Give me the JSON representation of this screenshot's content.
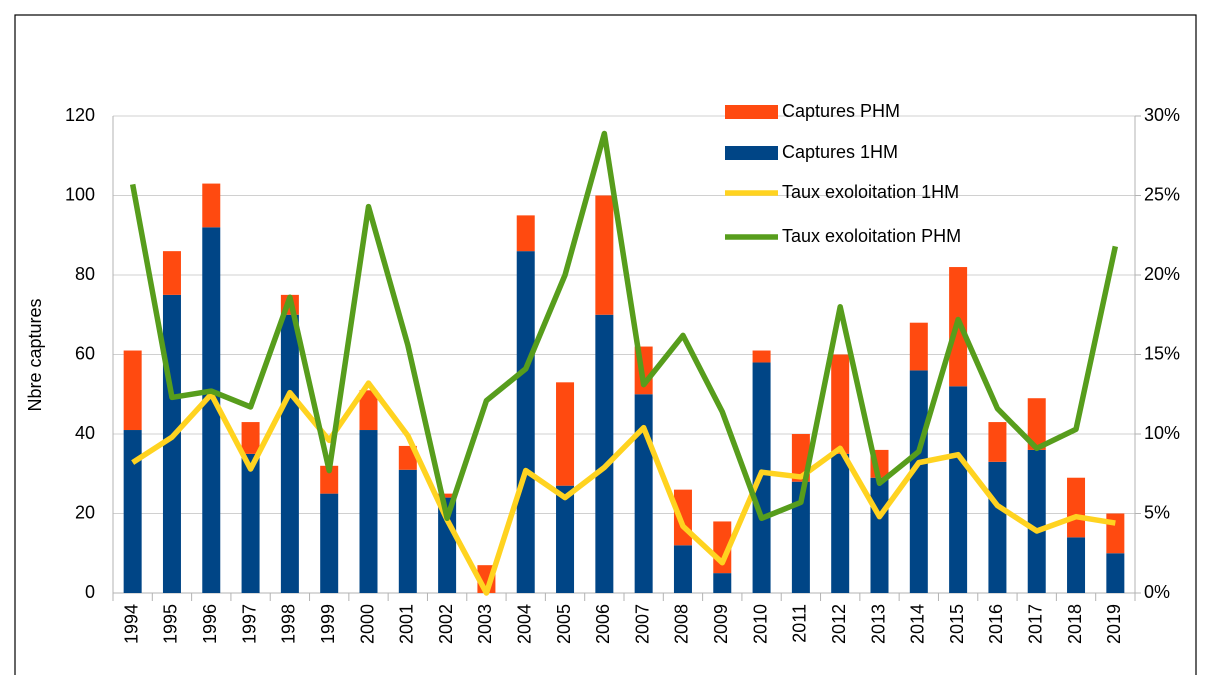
{
  "chart_data": {
    "type": "bar",
    "y_label": "Nbre captures",
    "categories": [
      "1994",
      "1995",
      "1996",
      "1997",
      "1998",
      "1999",
      "2000",
      "2001",
      "2002",
      "2003",
      "2004",
      "2005",
      "2006",
      "2007",
      "2008",
      "2009",
      "2010",
      "2011",
      "2012",
      "2013",
      "2014",
      "2015",
      "2016",
      "2017",
      "2018",
      "2019"
    ],
    "series": [
      {
        "name": "Captures PHM",
        "type": "bar",
        "color": "#ff4a10",
        "values": [
          20,
          11,
          11,
          8,
          5,
          7,
          10,
          6,
          1,
          7,
          9,
          26,
          30,
          12,
          14,
          13,
          3,
          12,
          25,
          7,
          12,
          30,
          10,
          13,
          15,
          10
        ]
      },
      {
        "name": "Captures 1HM",
        "type": "bar",
        "color": "#004586",
        "values": [
          41,
          75,
          92,
          35,
          70,
          25,
          41,
          31,
          24,
          0,
          86,
          27,
          70,
          50,
          12,
          5,
          58,
          28,
          35,
          29,
          56,
          52,
          33,
          36,
          14,
          10
        ]
      },
      {
        "name": "Taux exoloitation 1HM",
        "type": "line",
        "axis": "y2",
        "color": "#ffd320",
        "values": [
          8.2,
          9.8,
          12.5,
          7.8,
          12.6,
          9.6,
          13.2,
          9.9,
          4.6,
          0,
          7.7,
          6.0,
          7.9,
          10.4,
          4.2,
          1.9,
          7.6,
          7.3,
          9.1,
          4.8,
          8.2,
          8.7,
          5.5,
          3.9,
          4.8,
          4.4
        ]
      },
      {
        "name": "Taux exoloitation PHM",
        "type": "line",
        "axis": "y2",
        "color": "#579d1c",
        "values": [
          25.7,
          12.3,
          12.7,
          11.7,
          18.6,
          7.7,
          24.3,
          15.6,
          4.7,
          12.1,
          14.1,
          20.0,
          28.9,
          13.1,
          16.2,
          11.4,
          4.7,
          5.7,
          18.0,
          6.9,
          8.9,
          17.2,
          11.6,
          9.1,
          10.3,
          21.8
        ]
      }
    ],
    "ylim": [
      0,
      120
    ],
    "yticks": [
      0,
      20,
      40,
      60,
      80,
      100,
      120
    ],
    "y2lim": [
      0,
      30
    ],
    "y2ticks": [
      {
        "value": 0,
        "label": "0%"
      },
      {
        "value": 5,
        "label": "5%"
      },
      {
        "value": 10,
        "label": "10%"
      },
      {
        "value": 15,
        "label": "15%"
      },
      {
        "value": 20,
        "label": "20%"
      },
      {
        "value": 25,
        "label": "25%"
      },
      {
        "value": 30,
        "label": "30%"
      }
    ],
    "grid": true,
    "legend": "top-right"
  }
}
